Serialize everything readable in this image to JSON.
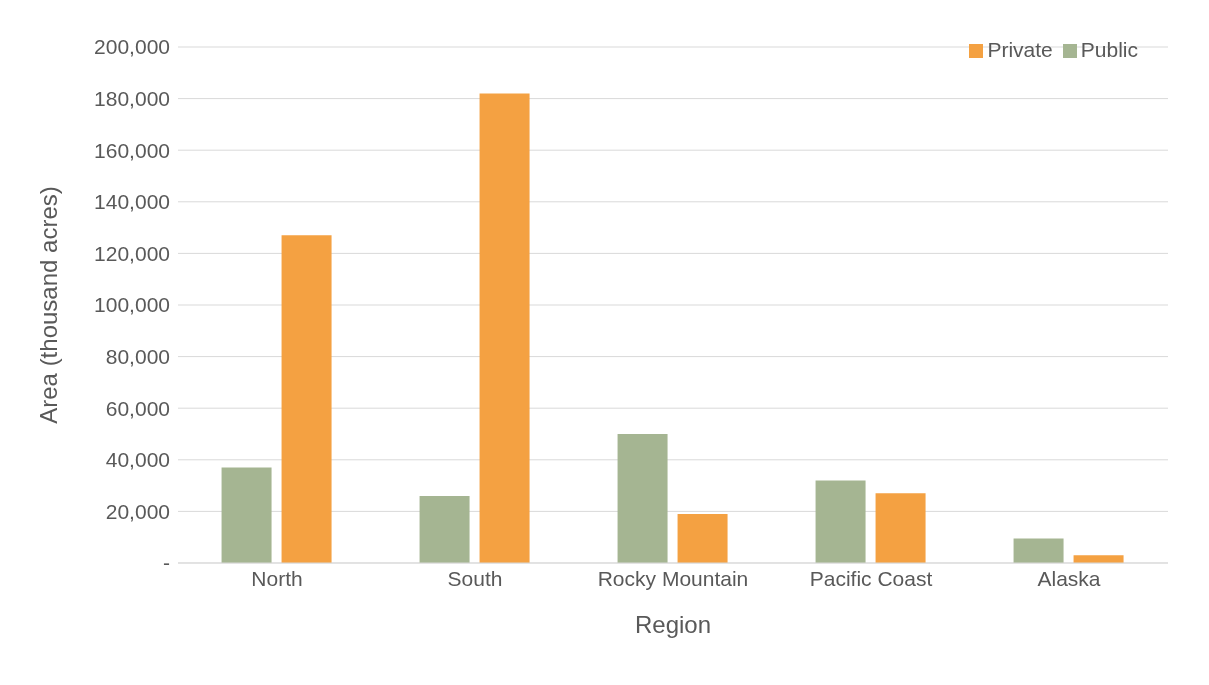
{
  "chart_data": {
    "type": "bar",
    "xlabel": "Region",
    "ylabel": "Area (thousand acres)",
    "categories": [
      "North",
      "South",
      "Rocky Mountain",
      "Pacific Coast",
      "Alaska"
    ],
    "series": [
      {
        "name": "Public",
        "color": "#a5b592",
        "values": [
          37000,
          26000,
          50000,
          32000,
          9500
        ]
      },
      {
        "name": "Private",
        "color": "#f4a142",
        "values": [
          127000,
          182000,
          19000,
          27000,
          3000
        ]
      }
    ],
    "ylim": [
      0,
      200000
    ],
    "yticks": [
      {
        "value": 0,
        "label": "-"
      },
      {
        "value": 20000,
        "label": "20,000"
      },
      {
        "value": 40000,
        "label": "40,000"
      },
      {
        "value": 60000,
        "label": "60,000"
      },
      {
        "value": 80000,
        "label": "80,000"
      },
      {
        "value": 100000,
        "label": "100,000"
      },
      {
        "value": 120000,
        "label": "120,000"
      },
      {
        "value": 140000,
        "label": "140,000"
      },
      {
        "value": 160000,
        "label": "160,000"
      },
      {
        "value": 180000,
        "label": "180,000"
      },
      {
        "value": 200000,
        "label": "200,000"
      }
    ],
    "grid": "y",
    "legend": "top right"
  }
}
